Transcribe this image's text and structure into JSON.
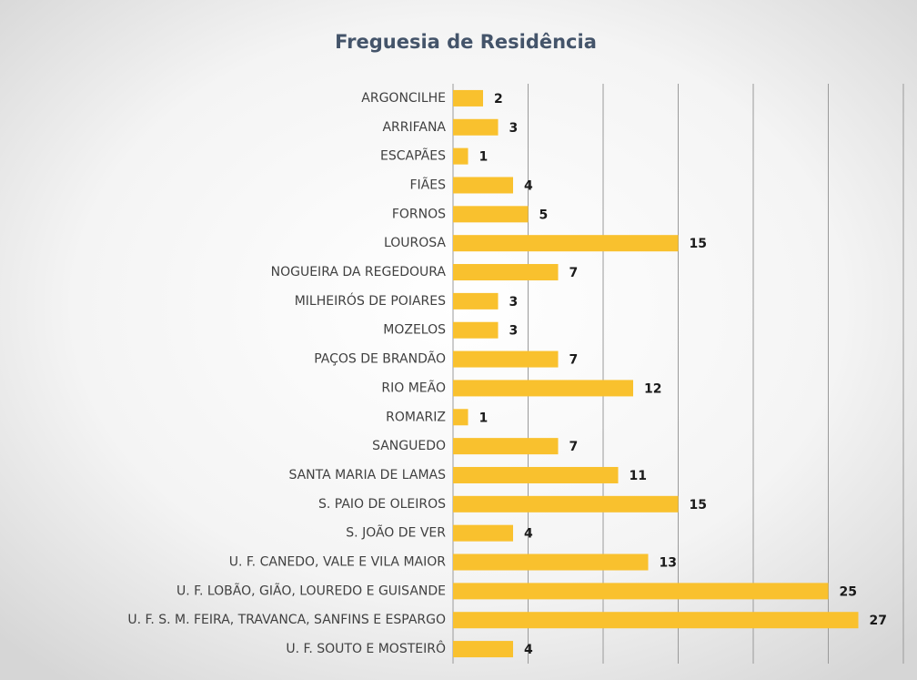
{
  "chart_data": {
    "type": "barh",
    "title": "Freguesia de Residência",
    "categories": [
      "ARGONCILHE",
      "ARRIFANA",
      "ESCAPÃES",
      "FIÃES",
      "FORNOS",
      "LOUROSA",
      "NOGUEIRA DA REGEDOURA",
      "MILHEIRÓS DE POIARES",
      "MOZELOS",
      "PAÇOS DE BRANDÃO",
      "RIO MEÃO",
      "ROMARIZ",
      "SANGUEDO",
      "SANTA MARIA DE LAMAS",
      "S. PAIO DE OLEIROS",
      "S. JOÃO DE VER",
      "U. F. CANEDO, VALE E VILA MAIOR",
      "U. F. LOBÃO, GIÃO, LOUREDO E GUISANDE",
      "U. F. S. M. FEIRA, TRAVANCA, SANFINS E ESPARGO",
      "U. F. SOUTO E MOSTEIRÔ"
    ],
    "values": [
      2,
      3,
      1,
      4,
      5,
      15,
      7,
      3,
      3,
      7,
      12,
      1,
      7,
      11,
      15,
      4,
      13,
      25,
      27,
      4
    ],
    "color": "#f9c12e",
    "xlim": [
      0,
      30
    ],
    "xticks": [
      0,
      5,
      10,
      15,
      20,
      25,
      30
    ],
    "grid": true
  }
}
